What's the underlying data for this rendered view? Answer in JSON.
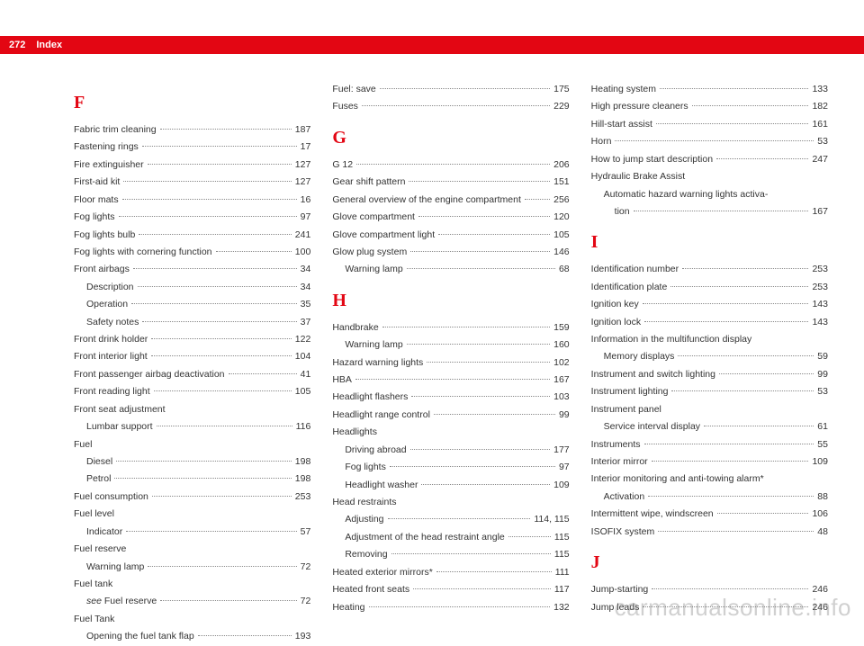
{
  "page_number": "272",
  "header_title": "Index",
  "watermark": "carmanualsonline.info",
  "colors": {
    "accent": "#e30613",
    "text": "#333333",
    "watermark": "rgba(120,120,120,0.35)",
    "background": "#ffffff"
  },
  "typography": {
    "body_fontsize_pt": 10.5,
    "letter_fontsize_pt": 20,
    "line_height": 1.85
  },
  "columns": [
    {
      "items": [
        {
          "type": "letter",
          "text": "F"
        },
        {
          "type": "entry",
          "label": "Fabric trim cleaning",
          "page": "187"
        },
        {
          "type": "entry",
          "label": "Fastening rings",
          "page": "17"
        },
        {
          "type": "entry",
          "label": "Fire extinguisher",
          "page": "127"
        },
        {
          "type": "entry",
          "label": "First-aid kit",
          "page": "127"
        },
        {
          "type": "entry",
          "label": "Floor mats",
          "page": "16"
        },
        {
          "type": "entry",
          "label": "Fog lights",
          "page": "97"
        },
        {
          "type": "entry",
          "label": "Fog lights bulb",
          "page": "241"
        },
        {
          "type": "entry",
          "label": "Fog lights with cornering function",
          "page": "100"
        },
        {
          "type": "entry",
          "label": "Front airbags",
          "page": "34"
        },
        {
          "type": "sub",
          "label": "Description",
          "page": "34"
        },
        {
          "type": "sub",
          "label": "Operation",
          "page": "35"
        },
        {
          "type": "sub",
          "label": "Safety notes",
          "page": "37"
        },
        {
          "type": "entry",
          "label": "Front drink holder",
          "page": "122"
        },
        {
          "type": "entry",
          "label": "Front interior light",
          "page": "104"
        },
        {
          "type": "entry",
          "label": "Front passenger airbag deactivation",
          "page": "41"
        },
        {
          "type": "entry",
          "label": "Front reading light",
          "page": "105"
        },
        {
          "type": "heading",
          "label": "Front seat adjustment"
        },
        {
          "type": "sub",
          "label": "Lumbar support",
          "page": "116"
        },
        {
          "type": "heading",
          "label": "Fuel"
        },
        {
          "type": "sub",
          "label": "Diesel",
          "page": "198"
        },
        {
          "type": "sub",
          "label": "Petrol",
          "page": "198"
        },
        {
          "type": "entry",
          "label": "Fuel consumption",
          "page": "253"
        },
        {
          "type": "heading",
          "label": "Fuel level"
        },
        {
          "type": "sub",
          "label": "Indicator",
          "page": "57"
        },
        {
          "type": "heading",
          "label": "Fuel reserve"
        },
        {
          "type": "sub",
          "label": "Warning lamp",
          "page": "72"
        },
        {
          "type": "heading",
          "label": "Fuel tank"
        },
        {
          "type": "sub_see",
          "label_pre": "see ",
          "label": "Fuel reserve",
          "page": "72"
        },
        {
          "type": "heading",
          "label": "Fuel Tank"
        },
        {
          "type": "sub",
          "label": "Opening the fuel tank flap",
          "page": "193"
        }
      ]
    },
    {
      "items": [
        {
          "type": "entry",
          "label": "Fuel: save",
          "page": "175"
        },
        {
          "type": "entry",
          "label": "Fuses",
          "page": "229"
        },
        {
          "type": "letter",
          "text": "G"
        },
        {
          "type": "entry",
          "label": "G 12",
          "page": "206"
        },
        {
          "type": "entry",
          "label": "Gear shift pattern",
          "page": "151"
        },
        {
          "type": "entry",
          "label": "General overview of the engine compartment",
          "page": "256"
        },
        {
          "type": "entry",
          "label": "Glove compartment",
          "page": "120"
        },
        {
          "type": "entry",
          "label": "Glove compartment light",
          "page": "105"
        },
        {
          "type": "entry",
          "label": "Glow plug system",
          "page": "146"
        },
        {
          "type": "sub",
          "label": "Warning lamp",
          "page": "68"
        },
        {
          "type": "letter",
          "text": "H"
        },
        {
          "type": "entry",
          "label": "Handbrake",
          "page": "159"
        },
        {
          "type": "sub",
          "label": "Warning lamp",
          "page": "160"
        },
        {
          "type": "entry",
          "label": "Hazard warning lights",
          "page": "102"
        },
        {
          "type": "entry",
          "label": "HBA",
          "page": "167"
        },
        {
          "type": "entry",
          "label": "Headlight flashers",
          "page": "103"
        },
        {
          "type": "entry",
          "label": "Headlight range control",
          "page": "99"
        },
        {
          "type": "heading",
          "label": "Headlights"
        },
        {
          "type": "sub",
          "label": "Driving abroad",
          "page": "177"
        },
        {
          "type": "sub",
          "label": "Fog lights",
          "page": "97"
        },
        {
          "type": "sub",
          "label": "Headlight washer",
          "page": "109"
        },
        {
          "type": "heading",
          "label": "Head restraints"
        },
        {
          "type": "sub",
          "label": "Adjusting",
          "page": "114, 115"
        },
        {
          "type": "sub",
          "label": "Adjustment of the head restraint angle",
          "page": "115"
        },
        {
          "type": "sub",
          "label": "Removing",
          "page": "115"
        },
        {
          "type": "entry",
          "label": "Heated exterior mirrors*",
          "page": "111"
        },
        {
          "type": "entry",
          "label": "Heated front seats",
          "page": "117"
        },
        {
          "type": "entry",
          "label": "Heating",
          "page": "132"
        }
      ]
    },
    {
      "items": [
        {
          "type": "entry",
          "label": "Heating system",
          "page": "133"
        },
        {
          "type": "entry",
          "label": "High pressure cleaners",
          "page": "182"
        },
        {
          "type": "entry",
          "label": "Hill-start assist",
          "page": "161"
        },
        {
          "type": "entry",
          "label": "Horn",
          "page": "53"
        },
        {
          "type": "entry",
          "label": "How to jump start description",
          "page": "247"
        },
        {
          "type": "heading",
          "label": "Hydraulic Brake Assist"
        },
        {
          "type": "sub_wrap",
          "label": "Automatic hazard warning lights activa-",
          "label2": "tion",
          "page": "167"
        },
        {
          "type": "letter",
          "text": "I"
        },
        {
          "type": "entry",
          "label": "Identification number",
          "page": "253"
        },
        {
          "type": "entry",
          "label": "Identification plate",
          "page": "253"
        },
        {
          "type": "entry",
          "label": "Ignition key",
          "page": "143"
        },
        {
          "type": "entry",
          "label": "Ignition lock",
          "page": "143"
        },
        {
          "type": "heading",
          "label": "Information in the multifunction display"
        },
        {
          "type": "sub",
          "label": "Memory displays",
          "page": "59"
        },
        {
          "type": "entry",
          "label": "Instrument and switch lighting",
          "page": "99"
        },
        {
          "type": "entry",
          "label": "Instrument lighting",
          "page": "53"
        },
        {
          "type": "heading",
          "label": "Instrument panel"
        },
        {
          "type": "sub",
          "label": "Service interval display",
          "page": "61"
        },
        {
          "type": "entry",
          "label": "Instruments",
          "page": "55"
        },
        {
          "type": "entry",
          "label": "Interior mirror",
          "page": "109"
        },
        {
          "type": "heading",
          "label": "Interior monitoring and anti-towing alarm*"
        },
        {
          "type": "sub",
          "label": "Activation",
          "page": "88"
        },
        {
          "type": "entry",
          "label": "Intermittent wipe, windscreen",
          "page": "106"
        },
        {
          "type": "entry",
          "label": "ISOFIX system",
          "page": "48"
        },
        {
          "type": "letter",
          "text": "J"
        },
        {
          "type": "entry",
          "label": "Jump-starting",
          "page": "246"
        },
        {
          "type": "entry",
          "label": "Jump leads",
          "page": "246"
        }
      ]
    }
  ]
}
